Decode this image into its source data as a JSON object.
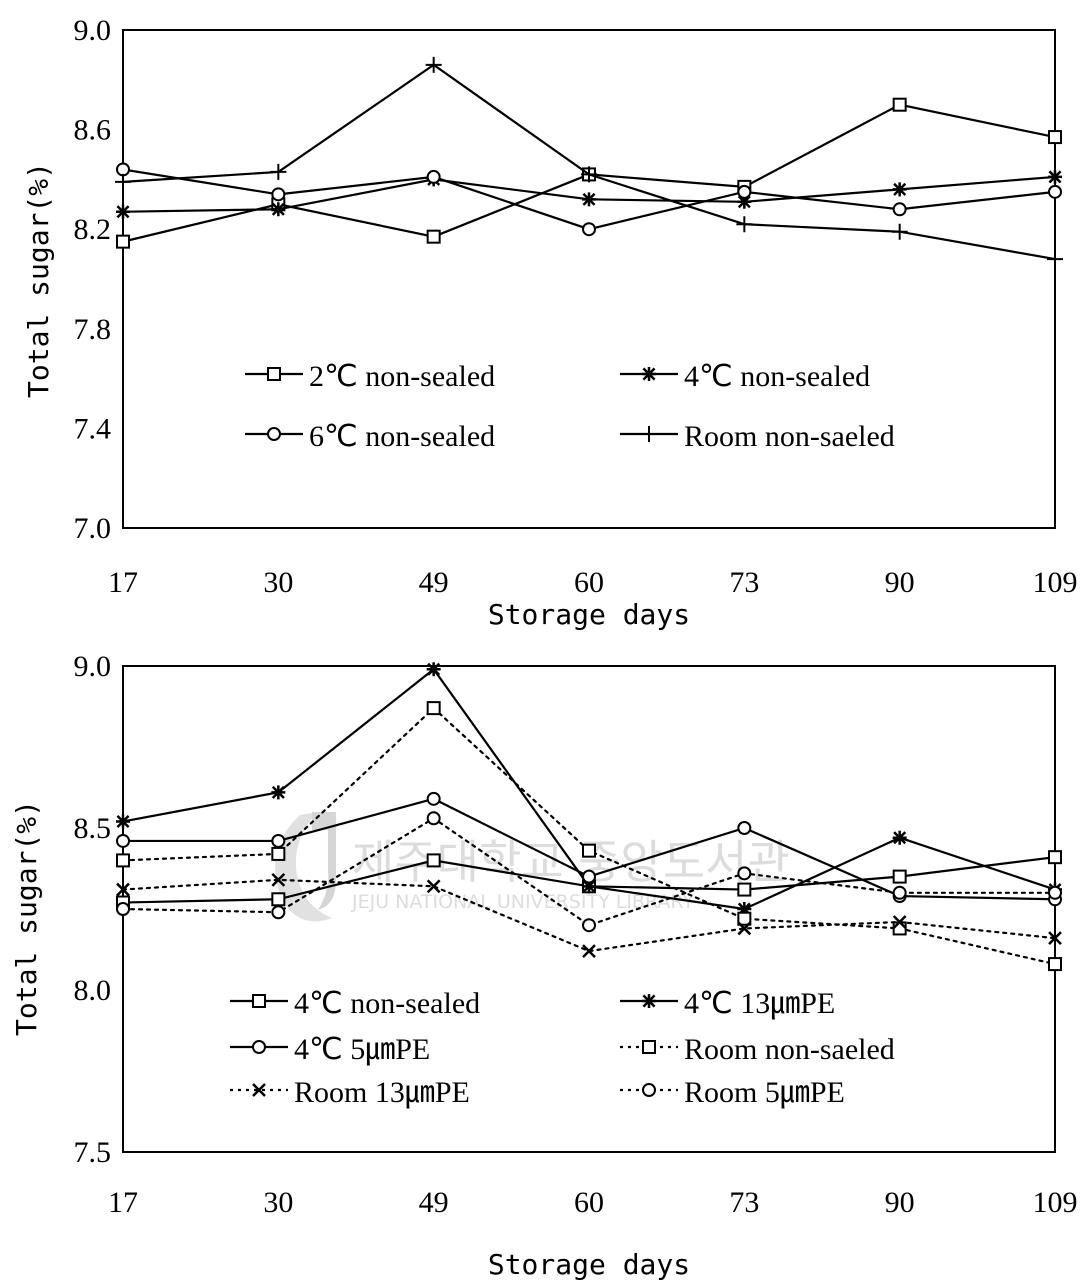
{
  "chart_data": [
    {
      "type": "line",
      "xlabel": "Storage  days",
      "ylabel": "Total sugar(%)",
      "categories": [
        "17",
        "30",
        "49",
        "60",
        "73",
        "90",
        "109"
      ],
      "ylim": [
        7.0,
        9.0
      ],
      "yticks": [
        "9.0",
        "8.6",
        "8.2",
        "7.8",
        "7.4",
        "7.0"
      ],
      "legend_position": "lower-center, two columns",
      "series": [
        {
          "name": "2℃ non-sealed",
          "marker": "square",
          "dash": "solid",
          "values": [
            8.15,
            8.3,
            8.17,
            8.42,
            8.37,
            8.7,
            8.57
          ]
        },
        {
          "name": "4℃ non-sealed",
          "marker": "asterisk",
          "dash": "solid",
          "values": [
            8.27,
            8.28,
            8.4,
            8.32,
            8.31,
            8.36,
            8.41
          ]
        },
        {
          "name": "6℃ non-sealed",
          "marker": "circle",
          "dash": "solid",
          "values": [
            8.44,
            8.34,
            8.41,
            8.2,
            8.35,
            8.28,
            8.35
          ]
        },
        {
          "name": "Room non-saeled",
          "marker": "plus",
          "dash": "solid",
          "values": [
            8.39,
            8.43,
            8.86,
            8.42,
            8.22,
            8.19,
            8.08
          ]
        }
      ]
    },
    {
      "type": "line",
      "xlabel": "Storage  days",
      "ylabel": "Total sugar(%)",
      "categories": [
        "17",
        "30",
        "49",
        "60",
        "73",
        "90",
        "109"
      ],
      "ylim": [
        7.5,
        9.0
      ],
      "yticks": [
        "9.0",
        "8.5",
        "8.0",
        "7.5"
      ],
      "legend_position": "lower-center, two columns",
      "series": [
        {
          "name": "4℃ non-sealed",
          "marker": "square",
          "dash": "solid",
          "values": [
            8.27,
            8.28,
            8.4,
            8.32,
            8.31,
            8.35,
            8.41
          ]
        },
        {
          "name": "4℃ 13㎛PE",
          "marker": "asterisk",
          "dash": "solid",
          "values": [
            8.52,
            8.61,
            8.99,
            8.32,
            8.25,
            8.47,
            8.31
          ]
        },
        {
          "name": "4℃ 5㎛PE",
          "marker": "circle",
          "dash": "solid",
          "values": [
            8.46,
            8.46,
            8.59,
            8.35,
            8.5,
            8.29,
            8.28
          ]
        },
        {
          "name": "Room non-saeled",
          "marker": "square",
          "dash": "dotted",
          "values": [
            8.4,
            8.42,
            8.87,
            8.43,
            8.22,
            8.19,
            8.08
          ]
        },
        {
          "name": "Room 13㎛PE",
          "marker": "x",
          "dash": "dotted",
          "values": [
            8.31,
            8.34,
            8.32,
            8.12,
            8.19,
            8.21,
            8.16
          ]
        },
        {
          "name": "Room 5㎛PE",
          "marker": "circle",
          "dash": "dotted",
          "values": [
            8.25,
            8.24,
            8.53,
            8.2,
            8.36,
            8.3,
            8.3
          ]
        }
      ]
    }
  ],
  "watermark": {
    "text_main": "제주대학교 중앙도서관",
    "text_sub": "JEJU NATIONAL UNIVERSITY LIBRARY"
  }
}
